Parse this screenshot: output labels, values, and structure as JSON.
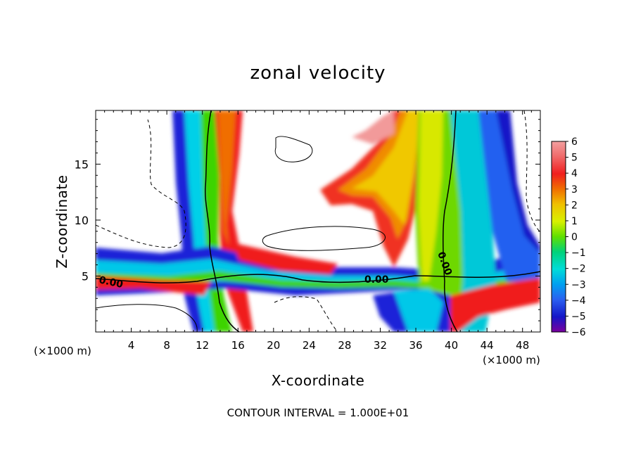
{
  "chart_data": {
    "type": "heatmap",
    "title": "zonal velocity",
    "xlabel": "X-coordinate",
    "ylabel": "Z-coordinate",
    "x_unit_label": "(×1000 m)",
    "x_unit_label_right": "(×1000 m)",
    "x_ticks": [
      4,
      8,
      12,
      16,
      20,
      24,
      28,
      32,
      36,
      40,
      44,
      48
    ],
    "y_ticks": [
      5,
      10,
      15
    ],
    "xlim": [
      0,
      50
    ],
    "ylim": [
      0,
      19.8
    ],
    "colorbar": {
      "ticks": [
        6,
        5,
        4,
        3,
        2,
        1,
        0,
        -1,
        -2,
        -3,
        -4,
        -5,
        -6
      ],
      "range": [
        -6,
        6
      ],
      "colors": [
        "#e887f0",
        "#f08585",
        "#f01e1e",
        "#f06e00",
        "#f0b800",
        "#e3f000",
        "#9ef000",
        "#3ed400",
        "#00d26a",
        "#00e2c8",
        "#00a6f0",
        "#2f6cf0",
        "#1a20d8",
        "#3200a0",
        "#7a009e"
      ]
    },
    "contour_labels": [
      "0.00",
      "0.00",
      "0.00"
    ],
    "footer": "CONTOUR INTERVAL = 1.000E+01"
  }
}
